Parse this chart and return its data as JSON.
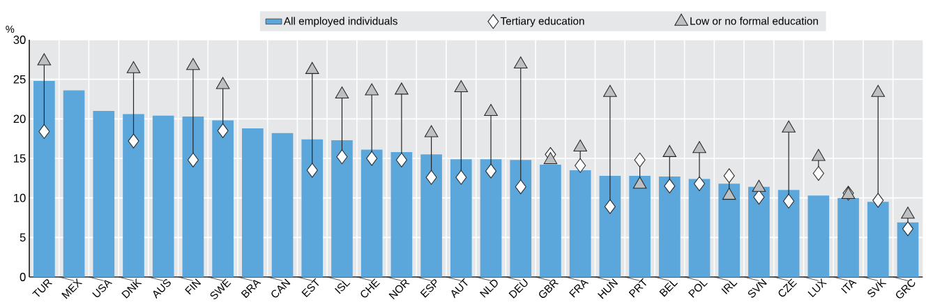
{
  "chart_data": {
    "type": "bar",
    "ylabel": "%",
    "categories": [
      "TUR",
      "MEX",
      "USA",
      "DNK",
      "AUS",
      "FIN",
      "SWE",
      "BRA",
      "CAN",
      "EST",
      "ISL",
      "CHE",
      "NOR",
      "ESP",
      "AUT",
      "NLD",
      "DEU",
      "GBR",
      "FRA",
      "HUN",
      "PRT",
      "BEL",
      "POL",
      "IRL",
      "SVN",
      "CZE",
      "LUX",
      "ITA",
      "SVK",
      "GRC"
    ],
    "series": [
      {
        "name": "All employed individuals",
        "color": "#5ba7dc",
        "values": [
          24.8,
          23.6,
          21.0,
          20.6,
          20.4,
          20.3,
          19.8,
          18.8,
          18.2,
          17.4,
          17.3,
          16.1,
          15.8,
          15.5,
          14.9,
          14.9,
          14.8,
          14.2,
          13.5,
          12.8,
          12.8,
          12.7,
          12.4,
          11.8,
          11.4,
          11.0,
          10.3,
          10.0,
          9.5,
          6.9
        ]
      },
      {
        "name": "Tertiary education",
        "type": "scatter",
        "marker": "diamond",
        "color": "#ffffff",
        "values": [
          18.4,
          null,
          null,
          17.2,
          null,
          14.8,
          18.5,
          null,
          null,
          13.5,
          15.2,
          15.0,
          14.8,
          12.6,
          12.6,
          13.4,
          11.4,
          15.5,
          14.1,
          8.9,
          14.8,
          11.5,
          11.8,
          12.8,
          10.1,
          9.6,
          13.1,
          10.6,
          9.7,
          6.1
        ]
      },
      {
        "name": "Low or no formal education",
        "type": "scatter",
        "marker": "triangle",
        "color": "#bdbfc1",
        "values": [
          27.3,
          null,
          null,
          26.3,
          null,
          26.7,
          24.3,
          null,
          null,
          26.2,
          23.1,
          23.5,
          23.6,
          18.2,
          23.9,
          20.9,
          26.9,
          14.8,
          16.4,
          23.3,
          11.7,
          15.7,
          16.2,
          10.3,
          11.3,
          18.8,
          15.2,
          10.4,
          23.3,
          7.9
        ]
      }
    ],
    "ylim": [
      0,
      30
    ],
    "yticks": [
      0,
      5,
      10,
      15,
      20,
      25,
      30
    ],
    "grid": true,
    "legend": "top"
  }
}
